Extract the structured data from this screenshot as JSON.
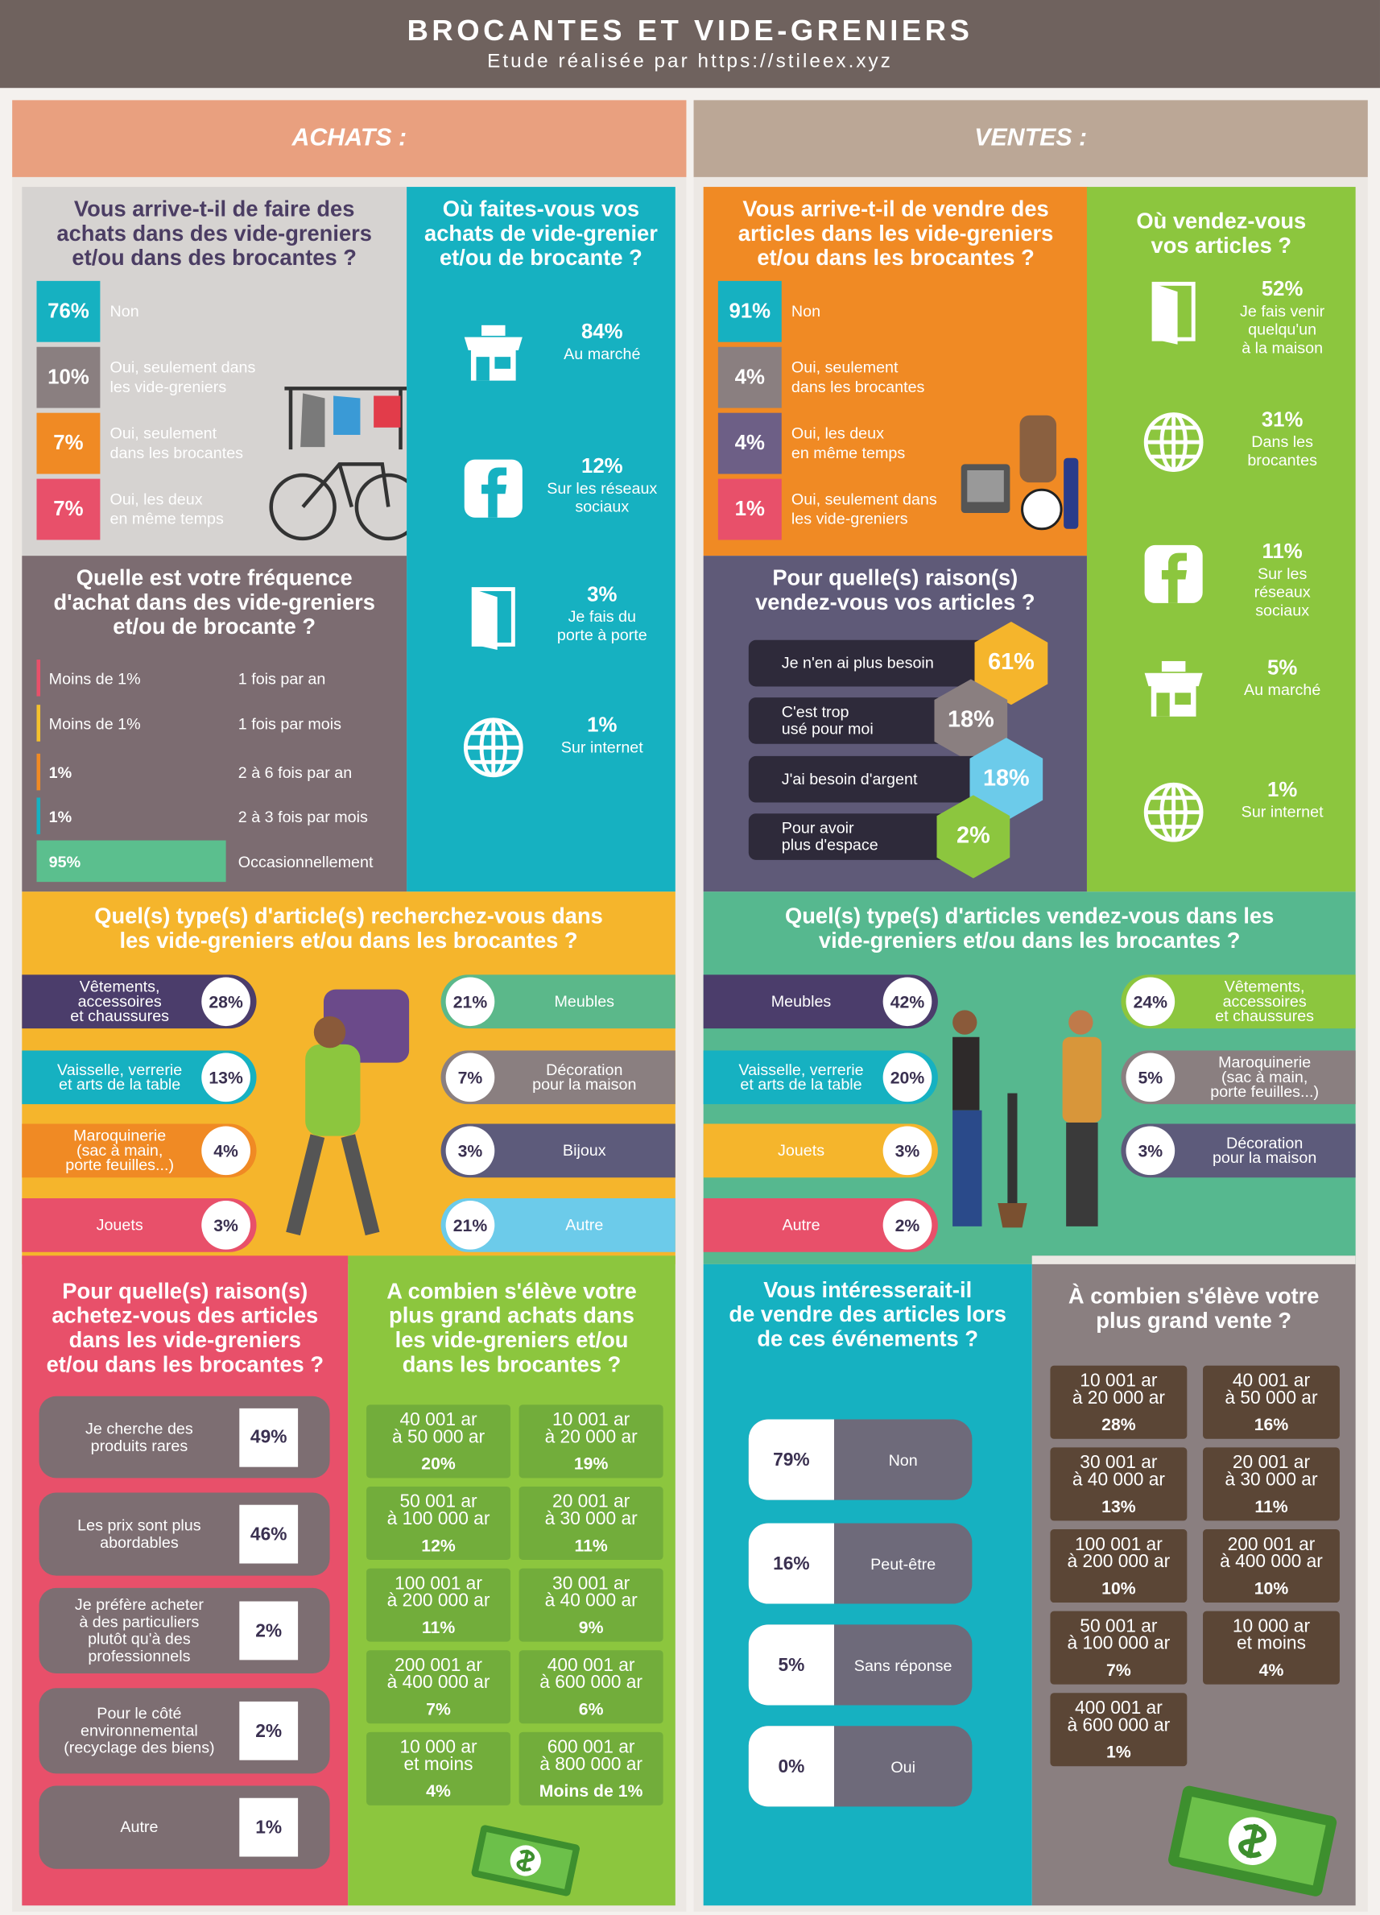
{
  "header": {
    "title": "BROCANTES ET VIDE-GRENIERS",
    "subtitle": "Etude réalisée par https://stileex.xyz"
  },
  "achats": {
    "heading": "ACHATS :",
    "habit": {
      "question": "Vous arrive-t-il de faire des\nachats dans des vide-greniers\net/ou dans des brocantes ?",
      "items": [
        {
          "value": "76%",
          "label": "Non"
        },
        {
          "value": "10%",
          "label": "Oui, seulement dans\nles vide-greniers"
        },
        {
          "value": "7%",
          "label": "Oui, seulement\ndans les brocantes"
        },
        {
          "value": "7%",
          "label": "Oui, les deux\nen même temps"
        }
      ]
    },
    "where": {
      "question": "Où faites-vous vos\nachats de vide-grenier\net/ou de brocante ?",
      "items": [
        {
          "value": "84%",
          "label": "Au marché"
        },
        {
          "value": "12%",
          "label": "Sur les réseaux\nsociaux"
        },
        {
          "value": "3%",
          "label": "Je fais du\nporte à porte"
        },
        {
          "value": "1%",
          "label": "Sur internet"
        }
      ]
    },
    "frequency": {
      "question": "Quelle est votre fréquence\nd'achat dans des vide-greniers\net/ou de brocante ?",
      "items": [
        {
          "value": "Moins de 1%",
          "label": "1 fois par an"
        },
        {
          "value": "Moins de 1%",
          "label": "1 fois par mois"
        },
        {
          "value": "1%",
          "label": "2 à 6 fois par an"
        },
        {
          "value": "1%",
          "label": "2 à 3 fois par mois"
        },
        {
          "value": "95%",
          "label": "Occasionnellement"
        }
      ]
    },
    "types": {
      "question": "Quel(s) type(s) d'article(s) recherchez-vous dans\nles vide-greniers et/ou dans les brocantes ?",
      "items": [
        {
          "value": "28%",
          "label": "Vêtements,\naccessoires\net chaussures"
        },
        {
          "value": "13%",
          "label": "Vaisselle, verrerie\net arts de la table"
        },
        {
          "value": "4%",
          "label": "Maroquinerie\n(sac à main,\nporte feuilles...)"
        },
        {
          "value": "3%",
          "label": "Jouets"
        },
        {
          "value": "21%",
          "label": "Meubles"
        },
        {
          "value": "7%",
          "label": "Décoration\npour la maison"
        },
        {
          "value": "3%",
          "label": "Bijoux"
        },
        {
          "value": "21%",
          "label": "Autre"
        }
      ]
    },
    "reasons": {
      "question": "Pour quelle(s) raison(s)\nachetez-vous des articles\ndans les vide-greniers\net/ou dans les brocantes ?",
      "items": [
        {
          "value": "49%",
          "label": "Je cherche des\nproduits rares"
        },
        {
          "value": "46%",
          "label": "Les prix sont plus\nabordables"
        },
        {
          "value": "2%",
          "label": "Je préfère acheter\nà des particuliers\nplutôt qu'à des\nprofessionnels"
        },
        {
          "value": "2%",
          "label": "Pour le côté\nenvironnemental\n(recyclage des biens)"
        },
        {
          "value": "1%",
          "label": "Autre"
        }
      ]
    },
    "amounts": {
      "question": "A combien s'élève votre\nplus grand achats dans\nles vide-greniers et/ou\ndans les brocantes ?",
      "items": [
        {
          "range": "40 001 ar\nà 50 000 ar",
          "value": "20%"
        },
        {
          "range": "10 001 ar\nà 20 000 ar",
          "value": "19%"
        },
        {
          "range": "50 001 ar\nà 100 000 ar",
          "value": "12%"
        },
        {
          "range": "20 001 ar\nà 30 000 ar",
          "value": "11%"
        },
        {
          "range": "100 001 ar\nà 200 000 ar",
          "value": "11%"
        },
        {
          "range": "30 001 ar\nà 40 000 ar",
          "value": "9%"
        },
        {
          "range": "200 001 ar\nà 400 000 ar",
          "value": "7%"
        },
        {
          "range": "400 001 ar\nà 600 000 ar",
          "value": "6%"
        },
        {
          "range": "10 000 ar\net moins",
          "value": "4%"
        },
        {
          "range": "600 001 ar\nà 800 000 ar",
          "value": "Moins de 1%"
        }
      ]
    }
  },
  "ventes": {
    "heading": "VENTES :",
    "habit": {
      "question": "Vous arrive-t-il de vendre des\narticles dans les vide-greniers\net/ou dans les brocantes ?",
      "items": [
        {
          "value": "91%",
          "label": "Non"
        },
        {
          "value": "4%",
          "label": "Oui, seulement\ndans les brocantes"
        },
        {
          "value": "4%",
          "label": "Oui, les deux\nen même temps"
        },
        {
          "value": "1%",
          "label": "Oui, seulement dans\nles vide-greniers"
        }
      ]
    },
    "where": {
      "question": "Où vendez-vous\nvos articles ?",
      "items": [
        {
          "value": "52%",
          "label": "Je fais venir\nquelqu'un\nà la maison"
        },
        {
          "value": "31%",
          "label": "Dans les\nbrocantes"
        },
        {
          "value": "11%",
          "label": "Sur les\nréseaux\nsociaux"
        },
        {
          "value": "5%",
          "label": "Au marché"
        },
        {
          "value": "1%",
          "label": "Sur internet"
        }
      ]
    },
    "reasons": {
      "question": "Pour quelle(s) raison(s)\nvendez-vous vos articles ?",
      "items": [
        {
          "value": "61%",
          "label": "Je n'en ai plus besoin"
        },
        {
          "value": "18%",
          "label": "C'est trop\nusé pour moi"
        },
        {
          "value": "18%",
          "label": "J'ai besoin d'argent"
        },
        {
          "value": "2%",
          "label": "Pour avoir\nplus d'espace"
        }
      ]
    },
    "types": {
      "question": "Quel(s) type(s) d'articles vendez-vous dans les\nvide-greniers et/ou dans les brocantes ?",
      "items": [
        {
          "value": "42%",
          "label": "Meubles"
        },
        {
          "value": "20%",
          "label": "Vaisselle, verrerie\net arts de la table"
        },
        {
          "value": "3%",
          "label": "Jouets"
        },
        {
          "value": "2%",
          "label": "Autre"
        },
        {
          "value": "24%",
          "label": "Vêtements,\naccessoires\net chaussures"
        },
        {
          "value": "5%",
          "label": "Maroquinerie\n(sac à main,\nporte feuilles...)"
        },
        {
          "value": "3%",
          "label": "Décoration\npour la maison"
        }
      ]
    },
    "interest": {
      "question": "Vous intéresserait-il\nde vendre des articles lors\nde ces événements ?",
      "items": [
        {
          "value": "79%",
          "label": "Non"
        },
        {
          "value": "16%",
          "label": "Peut-être"
        },
        {
          "value": "5%",
          "label": "Sans réponse"
        },
        {
          "value": "0%",
          "label": "Oui"
        }
      ]
    },
    "amounts": {
      "question": "À combien s'élève votre\nplus grand vente ?",
      "items": [
        {
          "range": "10 001 ar\nà 20 000 ar",
          "value": "28%"
        },
        {
          "range": "40 001 ar\nà 50 000 ar",
          "value": "16%"
        },
        {
          "range": "30 001 ar\nà 40 000 ar",
          "value": "13%"
        },
        {
          "range": "20 001 ar\nà 30 000 ar",
          "value": "11%"
        },
        {
          "range": "100 001 ar\nà 200 000 ar",
          "value": "10%"
        },
        {
          "range": "200 001 ar\nà 400 000 ar",
          "value": "10%"
        },
        {
          "range": "50 001 ar\nà 100 000 ar",
          "value": "7%"
        },
        {
          "range": "10 000 ar\net moins",
          "value": "4%"
        },
        {
          "range": "400 001 ar\nà 600 000 ar",
          "value": "1%"
        }
      ]
    }
  }
}
